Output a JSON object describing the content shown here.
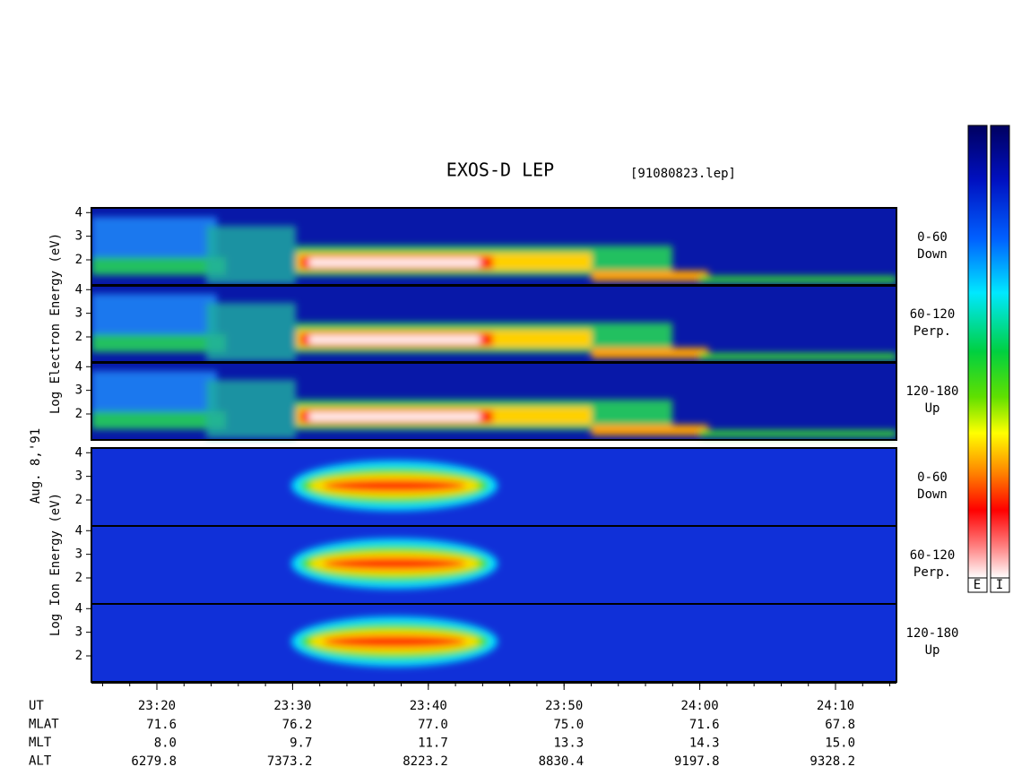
{
  "chart_data": {
    "type": "spectrogram",
    "title": "EXOS-D LEP",
    "subtitle": "[91080823.lep]",
    "date": "Aug. 8,'91",
    "groups": [
      {
        "label": "Log Electron Energy (eV)"
      },
      {
        "label": "Log Ion Energy (eV)"
      }
    ],
    "panels": [
      {
        "angle": "0-60",
        "direction": "Down",
        "ylim": [
          0.9,
          4.2
        ],
        "yticks": [
          2,
          3,
          4
        ]
      },
      {
        "angle": "60-120",
        "direction": "Perp.",
        "ylim": [
          0.9,
          4.2
        ],
        "yticks": [
          2,
          3,
          4
        ]
      },
      {
        "angle": "120-180",
        "direction": "Up",
        "ylim": [
          0.9,
          4.2
        ],
        "yticks": [
          2,
          3,
          4
        ]
      },
      {
        "angle": "0-60",
        "direction": "Down",
        "ylim": [
          0.9,
          4.2
        ],
        "yticks": [
          2,
          3,
          4
        ]
      },
      {
        "angle": "60-120",
        "direction": "Perp.",
        "ylim": [
          0.9,
          4.2
        ],
        "yticks": [
          2,
          3,
          4
        ]
      },
      {
        "angle": "120-180",
        "direction": "Up",
        "ylim": [
          0.9,
          4.2
        ],
        "yticks": [
          2,
          3,
          4
        ]
      }
    ],
    "x": [
      "23:20",
      "23:30",
      "23:40",
      "23:50",
      "24:00",
      "24:10"
    ],
    "ephemeris": {
      "labels": [
        "UT",
        "MLAT",
        "MLT",
        "ALT"
      ],
      "rows": [
        [
          "71.6",
          "76.2",
          "77.0",
          "75.0",
          "71.6",
          "67.8"
        ],
        [
          "8.0",
          "9.7",
          "11.7",
          "13.3",
          "14.3",
          "15.0"
        ],
        [
          "6279.8",
          "7373.2",
          "8223.2",
          "8830.4",
          "9197.8",
          "9328.2"
        ]
      ]
    },
    "colorbar_labels": [
      "E",
      "I"
    ]
  }
}
